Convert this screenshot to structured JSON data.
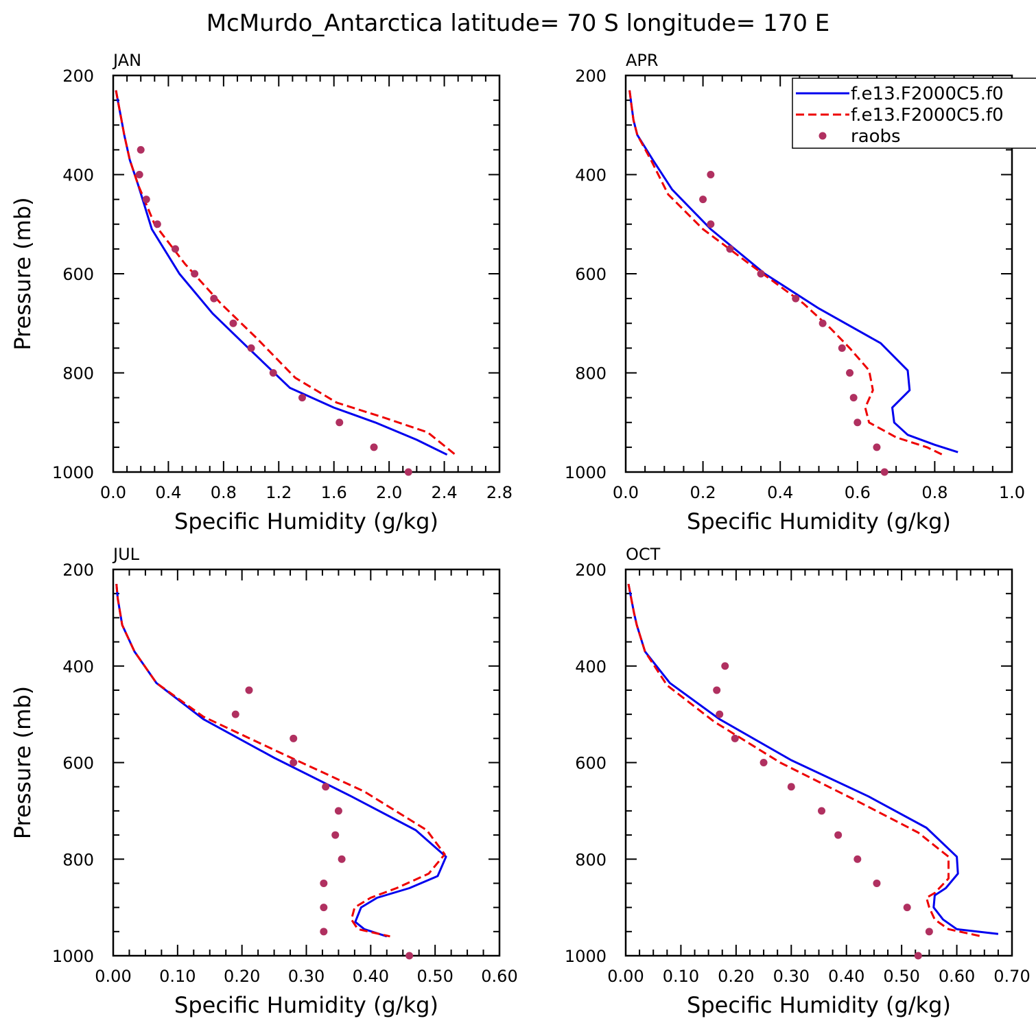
{
  "title": "McMurdo_Antarctica  latitude= 70 S longitude= 170 E",
  "legend": {
    "entries": [
      {
        "label": "f.e13.F2000C5.f0",
        "color": "#0000ee",
        "style": "solid"
      },
      {
        "label": "f.e13.F2000C5.f0",
        "color": "#ee0000",
        "style": "dashed"
      },
      {
        "label": "raobs",
        "color": "#b03060",
        "style": "marker"
      }
    ],
    "placement": "top-right of APR panel"
  },
  "chart_data": [
    {
      "type": "line",
      "panel_title": "JAN",
      "xlabel": "Specific Humidity (g/kg)",
      "ylabel": "Pressure (mb)",
      "xlim": [
        0,
        2.8
      ],
      "ylim": [
        200,
        1000
      ],
      "y_inverted": true,
      "xticks": [
        0,
        0.4,
        0.8,
        1.2,
        1.6,
        2.0,
        2.4,
        2.8
      ],
      "xtick_labels": [
        "0.0",
        "0.4",
        "0.8",
        "1.2",
        "1.6",
        "2.0",
        "2.4",
        "2.8"
      ],
      "yticks": [
        200,
        400,
        600,
        800,
        1000
      ],
      "ytick_labels": [
        "200",
        "400",
        "600",
        "800",
        "1000"
      ],
      "series": [
        {
          "name": "f.e13.F2000C5.f0",
          "color": "#0000ee",
          "style": "solid",
          "points": [
            [
              0.02,
              230
            ],
            [
              0.04,
              260
            ],
            [
              0.06,
              290
            ],
            [
              0.08,
              320
            ],
            [
              0.12,
              370
            ],
            [
              0.18,
              420
            ],
            [
              0.28,
              510
            ],
            [
              0.48,
              600
            ],
            [
              0.72,
              680
            ],
            [
              0.98,
              750
            ],
            [
              1.28,
              830
            ],
            [
              1.6,
              870
            ],
            [
              1.9,
              900
            ],
            [
              2.2,
              935
            ],
            [
              2.42,
              965
            ]
          ]
        },
        {
          "name": "f.e13.F2000C5.f0",
          "color": "#ee0000",
          "style": "dashed",
          "points": [
            [
              0.02,
              230
            ],
            [
              0.04,
              260
            ],
            [
              0.06,
              290
            ],
            [
              0.08,
              320
            ],
            [
              0.12,
              370
            ],
            [
              0.18,
              420
            ],
            [
              0.3,
              500
            ],
            [
              0.52,
              580
            ],
            [
              0.78,
              660
            ],
            [
              1.04,
              730
            ],
            [
              1.32,
              810
            ],
            [
              1.62,
              860
            ],
            [
              1.96,
              890
            ],
            [
              2.28,
              920
            ],
            [
              2.48,
              965
            ]
          ]
        },
        {
          "name": "raobs",
          "color": "#b03060",
          "style": "marker",
          "points": [
            [
              0.2,
              350
            ],
            [
              0.19,
              400
            ],
            [
              0.24,
              450
            ],
            [
              0.32,
              500
            ],
            [
              0.45,
              550
            ],
            [
              0.59,
              600
            ],
            [
              0.73,
              650
            ],
            [
              0.87,
              700
            ],
            [
              1.0,
              750
            ],
            [
              1.16,
              800
            ],
            [
              1.37,
              850
            ],
            [
              1.64,
              900
            ],
            [
              1.89,
              950
            ],
            [
              2.14,
              1000
            ]
          ]
        }
      ]
    },
    {
      "type": "line",
      "panel_title": "APR",
      "xlabel": "Specific Humidity (g/kg)",
      "ylabel": "",
      "xlim": [
        0,
        1.0
      ],
      "ylim": [
        200,
        1000
      ],
      "y_inverted": true,
      "xticks": [
        0,
        0.2,
        0.4,
        0.6,
        0.8,
        1.0
      ],
      "xtick_labels": [
        "0.0",
        "0.2",
        "0.4",
        "0.6",
        "0.8",
        "1.0"
      ],
      "yticks": [
        200,
        400,
        600,
        800,
        1000
      ],
      "ytick_labels": [
        "200",
        "400",
        "600",
        "800",
        "1000"
      ],
      "series": [
        {
          "name": "f.e13.F2000C5.f0",
          "color": "#0000ee",
          "style": "solid",
          "points": [
            [
              0.01,
              230
            ],
            [
              0.015,
              260
            ],
            [
              0.02,
              290
            ],
            [
              0.03,
              320
            ],
            [
              0.07,
              370
            ],
            [
              0.12,
              430
            ],
            [
              0.22,
              510
            ],
            [
              0.36,
              600
            ],
            [
              0.5,
              670
            ],
            [
              0.66,
              740
            ],
            [
              0.73,
              795
            ],
            [
              0.735,
              835
            ],
            [
              0.69,
              870
            ],
            [
              0.695,
              900
            ],
            [
              0.73,
              925
            ],
            [
              0.8,
              945
            ],
            [
              0.86,
              960
            ]
          ]
        },
        {
          "name": "f.e13.F2000C5.f0",
          "color": "#ee0000",
          "style": "dashed",
          "points": [
            [
              0.01,
              230
            ],
            [
              0.015,
              260
            ],
            [
              0.02,
              290
            ],
            [
              0.03,
              320
            ],
            [
              0.065,
              370
            ],
            [
              0.11,
              440
            ],
            [
              0.2,
              510
            ],
            [
              0.32,
              580
            ],
            [
              0.46,
              660
            ],
            [
              0.53,
              710
            ],
            [
              0.58,
              750
            ],
            [
              0.63,
              795
            ],
            [
              0.64,
              835
            ],
            [
              0.62,
              870
            ],
            [
              0.63,
              900
            ],
            [
              0.7,
              930
            ],
            [
              0.78,
              950
            ],
            [
              0.82,
              965
            ]
          ]
        },
        {
          "name": "raobs",
          "color": "#b03060",
          "style": "marker",
          "points": [
            [
              0.22,
              400
            ],
            [
              0.2,
              450
            ],
            [
              0.22,
              500
            ],
            [
              0.27,
              550
            ],
            [
              0.35,
              600
            ],
            [
              0.44,
              650
            ],
            [
              0.51,
              700
            ],
            [
              0.56,
              750
            ],
            [
              0.58,
              800
            ],
            [
              0.59,
              850
            ],
            [
              0.6,
              900
            ],
            [
              0.65,
              950
            ],
            [
              0.67,
              1000
            ]
          ]
        }
      ]
    },
    {
      "type": "line",
      "panel_title": "JUL",
      "xlabel": "Specific Humidity (g/kg)",
      "ylabel": "Pressure (mb)",
      "xlim": [
        0,
        0.6
      ],
      "ylim": [
        200,
        1000
      ],
      "y_inverted": true,
      "xticks": [
        0,
        0.1,
        0.2,
        0.3,
        0.4,
        0.5,
        0.6
      ],
      "xtick_labels": [
        "0.00",
        "0.10",
        "0.20",
        "0.30",
        "0.40",
        "0.50",
        "0.60"
      ],
      "yticks": [
        200,
        400,
        600,
        800,
        1000
      ],
      "ytick_labels": [
        "200",
        "400",
        "600",
        "800",
        "1000"
      ],
      "series": [
        {
          "name": "f.e13.F2000C5.f0",
          "color": "#0000ee",
          "style": "solid",
          "points": [
            [
              0.005,
              230
            ],
            [
              0.007,
              260
            ],
            [
              0.014,
              315
            ],
            [
              0.033,
              370
            ],
            [
              0.067,
              435
            ],
            [
              0.14,
              510
            ],
            [
              0.25,
              590
            ],
            [
              0.37,
              670
            ],
            [
              0.47,
              740
            ],
            [
              0.517,
              795
            ],
            [
              0.504,
              835
            ],
            [
              0.46,
              860
            ],
            [
              0.41,
              880
            ],
            [
              0.385,
              900
            ],
            [
              0.376,
              930
            ],
            [
              0.39,
              945
            ],
            [
              0.425,
              960
            ]
          ]
        },
        {
          "name": "f.e13.F2000C5.f0",
          "color": "#ee0000",
          "style": "dashed",
          "points": [
            [
              0.005,
              230
            ],
            [
              0.007,
              260
            ],
            [
              0.014,
              315
            ],
            [
              0.033,
              370
            ],
            [
              0.067,
              435
            ],
            [
              0.14,
              505
            ],
            [
              0.26,
              580
            ],
            [
              0.39,
              660
            ],
            [
              0.487,
              740
            ],
            [
              0.515,
              790
            ],
            [
              0.49,
              830
            ],
            [
              0.44,
              860
            ],
            [
              0.4,
              880
            ],
            [
              0.375,
              900
            ],
            [
              0.37,
              925
            ],
            [
              0.38,
              945
            ],
            [
              0.43,
              960
            ]
          ]
        },
        {
          "name": "raobs",
          "color": "#b03060",
          "style": "marker",
          "points": [
            [
              0.211,
              450
            ],
            [
              0.19,
              500
            ],
            [
              0.28,
              550
            ],
            [
              0.28,
              600
            ],
            [
              0.33,
              650
            ],
            [
              0.35,
              700
            ],
            [
              0.345,
              750
            ],
            [
              0.355,
              800
            ],
            [
              0.327,
              850
            ],
            [
              0.327,
              900
            ],
            [
              0.327,
              950
            ],
            [
              0.46,
              1000
            ]
          ]
        }
      ]
    },
    {
      "type": "line",
      "panel_title": "OCT",
      "xlabel": "Specific Humidity (g/kg)",
      "ylabel": "",
      "xlim": [
        0,
        0.7
      ],
      "ylim": [
        200,
        1000
      ],
      "y_inverted": true,
      "xticks": [
        0,
        0.1,
        0.2,
        0.3,
        0.4,
        0.5,
        0.6,
        0.7
      ],
      "xtick_labels": [
        "0.00",
        "0.10",
        "0.20",
        "0.30",
        "0.40",
        "0.50",
        "0.60",
        "0.70"
      ],
      "yticks": [
        200,
        400,
        600,
        800,
        1000
      ],
      "ytick_labels": [
        "200",
        "400",
        "600",
        "800",
        "1000"
      ],
      "series": [
        {
          "name": "f.e13.F2000C5.f0",
          "color": "#0000ee",
          "style": "solid",
          "points": [
            [
              0.005,
              230
            ],
            [
              0.01,
              260
            ],
            [
              0.015,
              290
            ],
            [
              0.02,
              315
            ],
            [
              0.035,
              370
            ],
            [
              0.08,
              435
            ],
            [
              0.17,
              510
            ],
            [
              0.3,
              595
            ],
            [
              0.44,
              670
            ],
            [
              0.545,
              735
            ],
            [
              0.6,
              795
            ],
            [
              0.602,
              830
            ],
            [
              0.58,
              860
            ],
            [
              0.56,
              875
            ],
            [
              0.558,
              900
            ],
            [
              0.575,
              925
            ],
            [
              0.6,
              945
            ],
            [
              0.675,
              955
            ]
          ]
        },
        {
          "name": "f.e13.F2000C5.f0",
          "color": "#ee0000",
          "style": "dashed",
          "points": [
            [
              0.005,
              230
            ],
            [
              0.01,
              260
            ],
            [
              0.015,
              290
            ],
            [
              0.02,
              315
            ],
            [
              0.035,
              370
            ],
            [
              0.075,
              440
            ],
            [
              0.16,
              515
            ],
            [
              0.28,
              600
            ],
            [
              0.42,
              680
            ],
            [
              0.53,
              745
            ],
            [
              0.585,
              795
            ],
            [
              0.585,
              840
            ],
            [
              0.56,
              870
            ],
            [
              0.545,
              880
            ],
            [
              0.55,
              900
            ],
            [
              0.56,
              925
            ],
            [
              0.585,
              945
            ],
            [
              0.645,
              960
            ]
          ]
        },
        {
          "name": "raobs",
          "color": "#b03060",
          "style": "marker",
          "points": [
            [
              0.18,
              400
            ],
            [
              0.165,
              450
            ],
            [
              0.17,
              500
            ],
            [
              0.198,
              550
            ],
            [
              0.25,
              600
            ],
            [
              0.3,
              650
            ],
            [
              0.355,
              700
            ],
            [
              0.385,
              750
            ],
            [
              0.42,
              800
            ],
            [
              0.455,
              850
            ],
            [
              0.51,
              900
            ],
            [
              0.55,
              950
            ],
            [
              0.53,
              1000
            ]
          ]
        }
      ]
    }
  ]
}
